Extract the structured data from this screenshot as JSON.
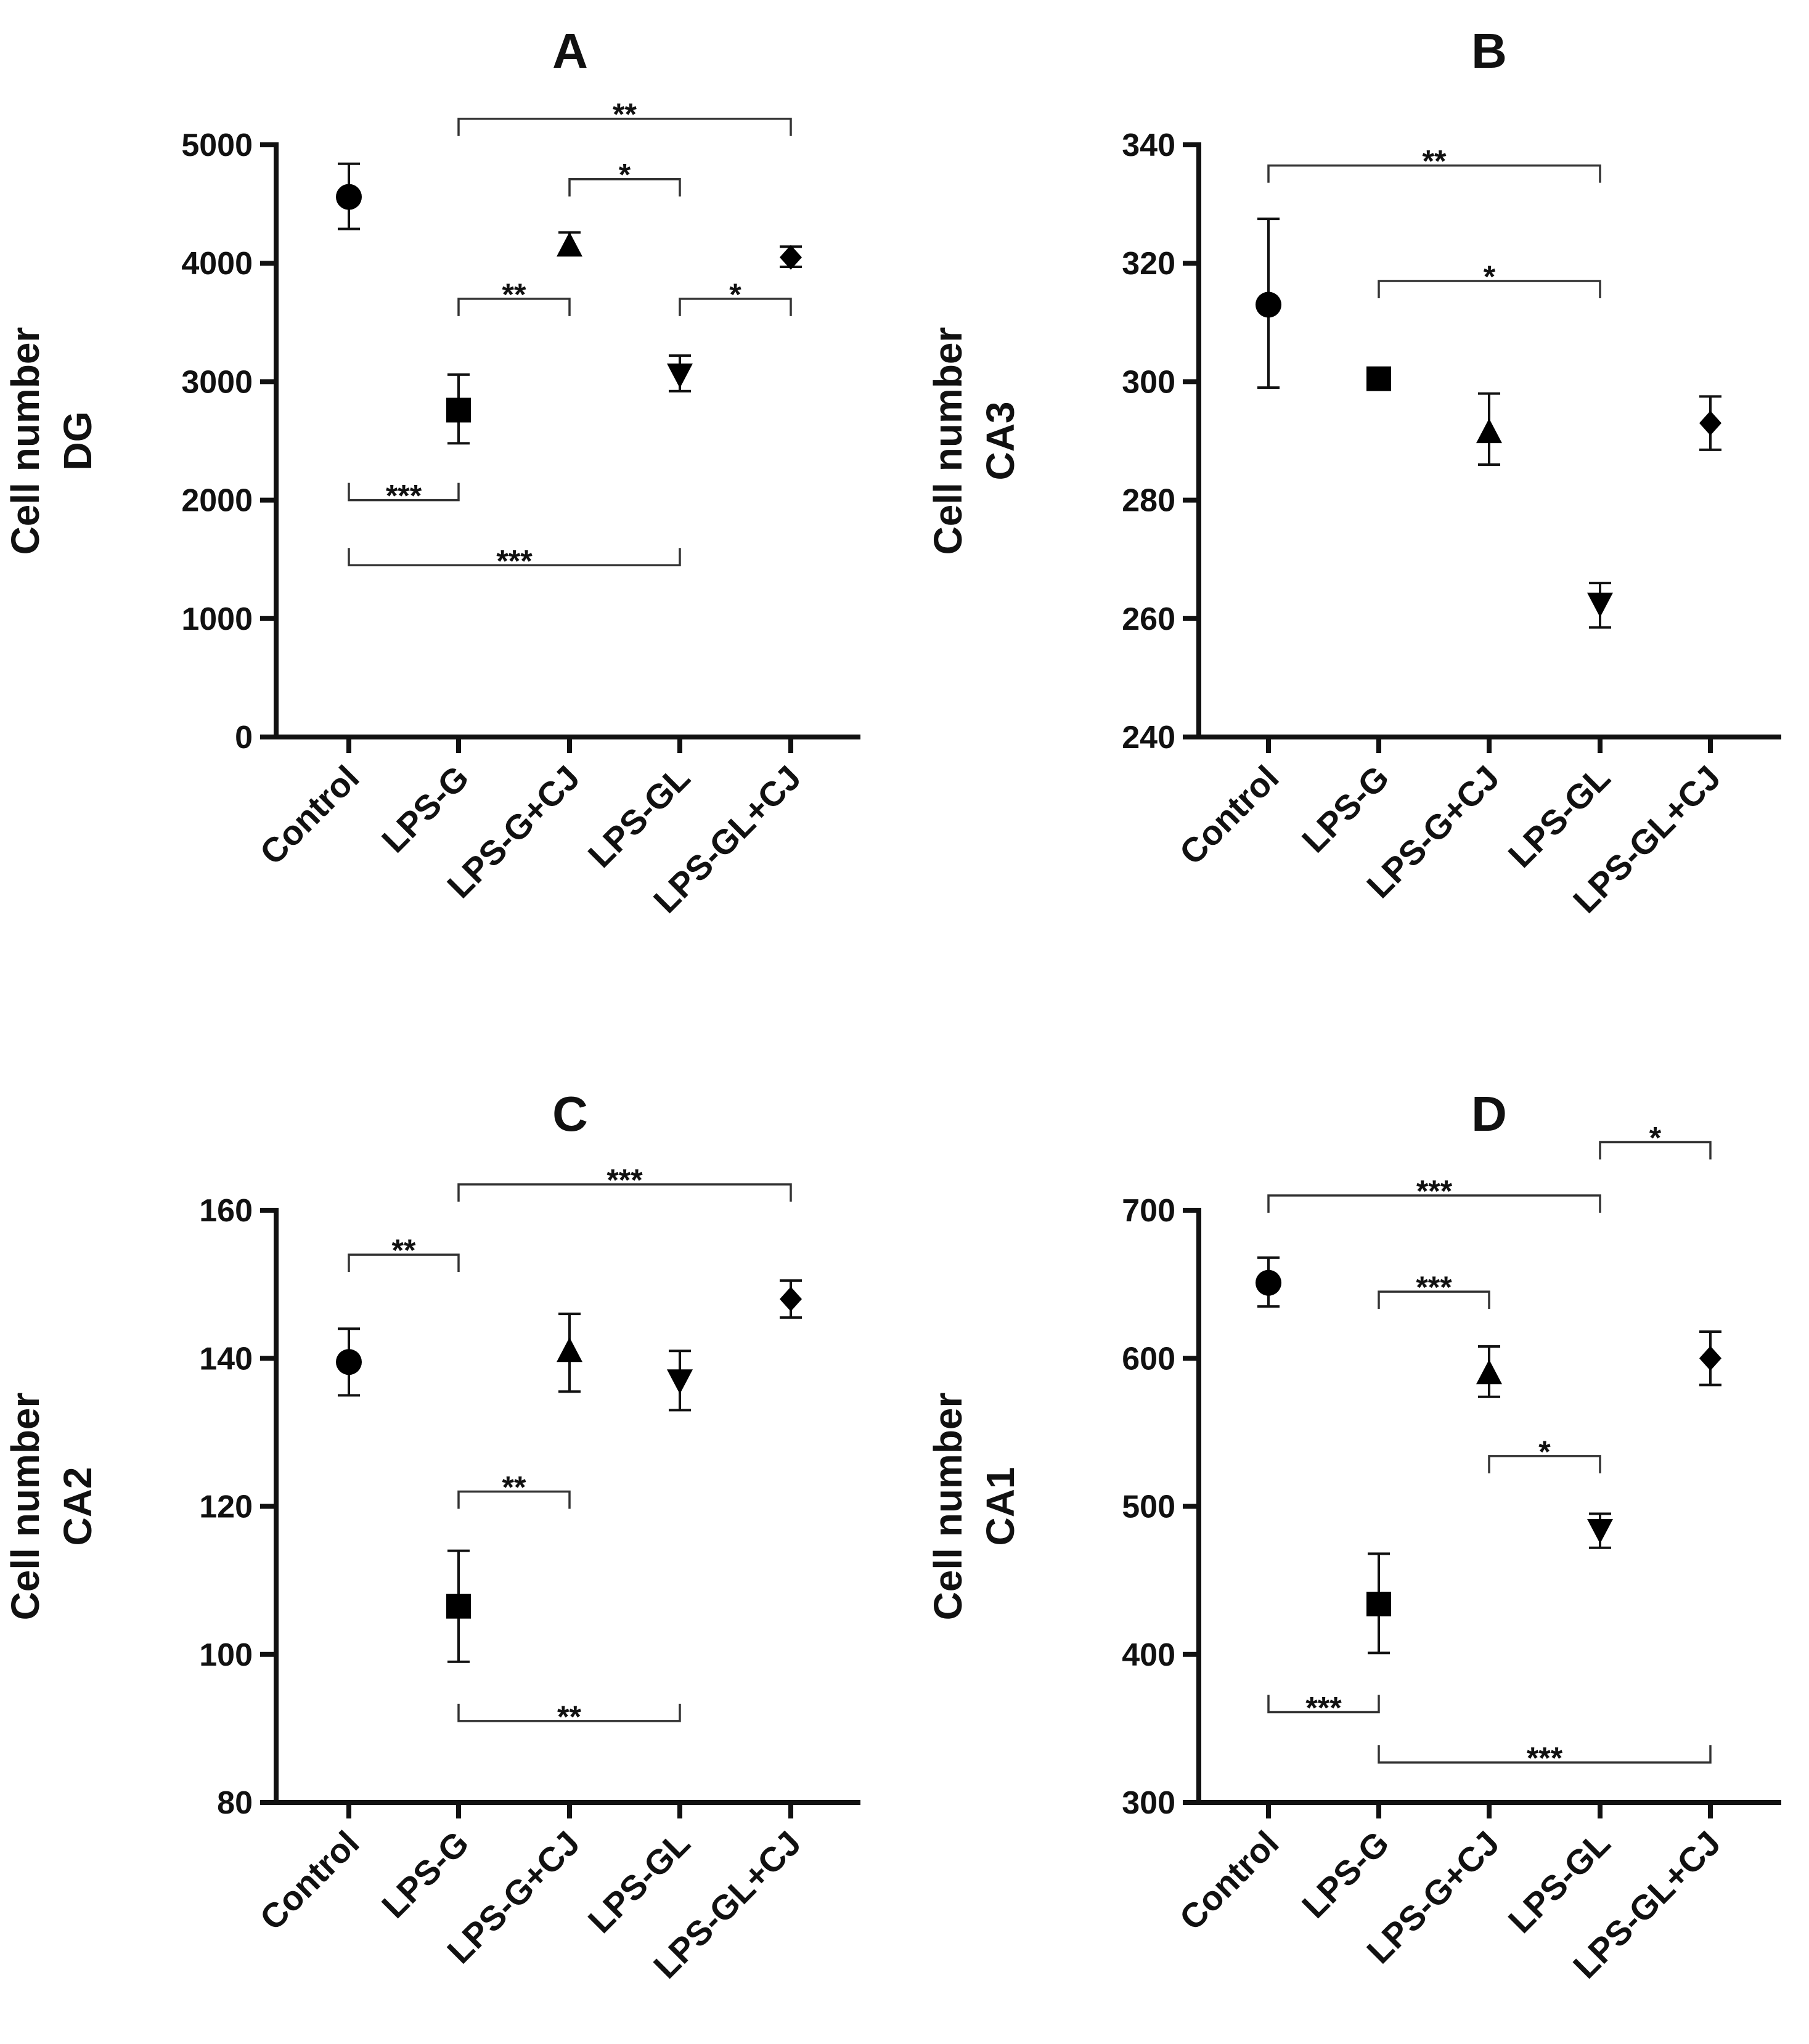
{
  "chart_data": [
    {
      "panel": "A",
      "type": "scatter",
      "title": "A",
      "ylabel_lines": [
        "Cell number",
        "DG"
      ],
      "categories": [
        "Control",
        "LPS-G",
        "LPS-G+CJ",
        "LPS-GL",
        "LPS-GL+CJ"
      ],
      "markers": [
        "circle",
        "square",
        "triangle-up",
        "triangle-down",
        "diamond"
      ],
      "ylim": [
        0,
        5000
      ],
      "yticks": [
        0,
        1000,
        2000,
        3000,
        4000,
        5000
      ],
      "ytick_labels": [
        "0",
        "1000",
        "2000",
        "3000",
        "4000",
        "5000"
      ],
      "series": [
        {
          "name": "mean",
          "values": [
            4560,
            2760,
            4150,
            3060,
            4050
          ]
        },
        {
          "name": "error_low",
          "values": [
            4290,
            2480,
            4080,
            2920,
            3970
          ]
        },
        {
          "name": "error_high",
          "values": [
            4840,
            3060,
            4260,
            3220,
            4140
          ]
        }
      ],
      "significance": [
        {
          "from": 1,
          "to": 4,
          "label": "**",
          "y": 5220,
          "side": "above"
        },
        {
          "from": 2,
          "to": 3,
          "label": "*",
          "y": 4710,
          "side": "above"
        },
        {
          "from": 1,
          "to": 2,
          "label": "**",
          "y": 3700,
          "side": "above"
        },
        {
          "from": 3,
          "to": 4,
          "label": "*",
          "y": 3700,
          "side": "above"
        },
        {
          "from": 0,
          "to": 1,
          "label": "***",
          "y": 2000,
          "side": "below"
        },
        {
          "from": 0,
          "to": 3,
          "label": "***",
          "y": 1450,
          "side": "below"
        }
      ]
    },
    {
      "panel": "B",
      "type": "scatter",
      "title": "B",
      "ylabel_lines": [
        "Cell number",
        "CA3"
      ],
      "categories": [
        "Control",
        "LPS-G",
        "LPS-G+CJ",
        "LPS-GL",
        "LPS-GL+CJ"
      ],
      "markers": [
        "circle",
        "square",
        "triangle-up",
        "triangle-down",
        "diamond"
      ],
      "ylim": [
        240,
        340
      ],
      "yticks": [
        240,
        260,
        280,
        300,
        320,
        340
      ],
      "ytick_labels": [
        "240",
        "260",
        "280",
        "300",
        "320",
        "340"
      ],
      "series": [
        {
          "name": "mean",
          "values": [
            313,
            300.5,
            291.5,
            262.5,
            293
          ]
        },
        {
          "name": "error_low",
          "values": [
            299,
            300,
            286,
            258.5,
            288.5
          ]
        },
        {
          "name": "error_high",
          "values": [
            327.5,
            301,
            298,
            266,
            297.5
          ]
        }
      ],
      "significance": [
        {
          "from": 0,
          "to": 3,
          "label": "**",
          "y": 336.5,
          "side": "above"
        },
        {
          "from": 1,
          "to": 3,
          "label": "*",
          "y": 317,
          "side": "above"
        }
      ]
    },
    {
      "panel": "C",
      "type": "scatter",
      "title": "C",
      "ylabel_lines": [
        "Cell number",
        "CA2"
      ],
      "categories": [
        "Control",
        "LPS-G",
        "LPS-G+CJ",
        "LPS-GL",
        "LPS-GL+CJ"
      ],
      "markers": [
        "circle",
        "square",
        "triangle-up",
        "triangle-down",
        "diamond"
      ],
      "ylim": [
        80,
        160
      ],
      "yticks": [
        80,
        100,
        120,
        140,
        160
      ],
      "ytick_labels": [
        "80",
        "100",
        "120",
        "140",
        "160"
      ],
      "series": [
        {
          "name": "mean",
          "values": [
            139.5,
            106.5,
            141,
            137,
            148
          ]
        },
        {
          "name": "error_low",
          "values": [
            135,
            99,
            135.5,
            133,
            145.5
          ]
        },
        {
          "name": "error_high",
          "values": [
            144,
            114,
            146,
            141,
            150.5
          ]
        }
      ],
      "significance": [
        {
          "from": 1,
          "to": 4,
          "label": "***",
          "y": 163.5,
          "side": "above"
        },
        {
          "from": 0,
          "to": 1,
          "label": "**",
          "y": 154,
          "side": "above"
        },
        {
          "from": 1,
          "to": 2,
          "label": "**",
          "y": 122,
          "side": "above"
        },
        {
          "from": 1,
          "to": 3,
          "label": "**",
          "y": 91,
          "side": "below"
        }
      ]
    },
    {
      "panel": "D",
      "type": "scatter",
      "title": "D",
      "ylabel_lines": [
        "Cell number",
        "CA1"
      ],
      "categories": [
        "Control",
        "LPS-G",
        "LPS-G+CJ",
        "LPS-GL",
        "LPS-GL+CJ"
      ],
      "markers": [
        "circle",
        "square",
        "triangle-up",
        "triangle-down",
        "diamond"
      ],
      "ylim": [
        300,
        700
      ],
      "yticks": [
        300,
        400,
        500,
        600,
        700
      ],
      "ytick_labels": [
        "300",
        "400",
        "500",
        "600",
        "700"
      ],
      "series": [
        {
          "name": "mean",
          "values": [
            651,
            434,
            590,
            484,
            600
          ]
        },
        {
          "name": "error_low",
          "values": [
            635,
            401,
            574,
            472,
            582
          ]
        },
        {
          "name": "error_high",
          "values": [
            668,
            468,
            608,
            495,
            618
          ]
        }
      ],
      "significance": [
        {
          "from": 3,
          "to": 4,
          "label": "*",
          "y": 746,
          "side": "above"
        },
        {
          "from": 0,
          "to": 3,
          "label": "***",
          "y": 710,
          "side": "above"
        },
        {
          "from": 1,
          "to": 2,
          "label": "***",
          "y": 645,
          "side": "above"
        },
        {
          "from": 2,
          "to": 3,
          "label": "*",
          "y": 534,
          "side": "above"
        },
        {
          "from": 0,
          "to": 1,
          "label": "***",
          "y": 361,
          "side": "below"
        },
        {
          "from": 1,
          "to": 4,
          "label": "***",
          "y": 327,
          "side": "below"
        }
      ]
    }
  ]
}
